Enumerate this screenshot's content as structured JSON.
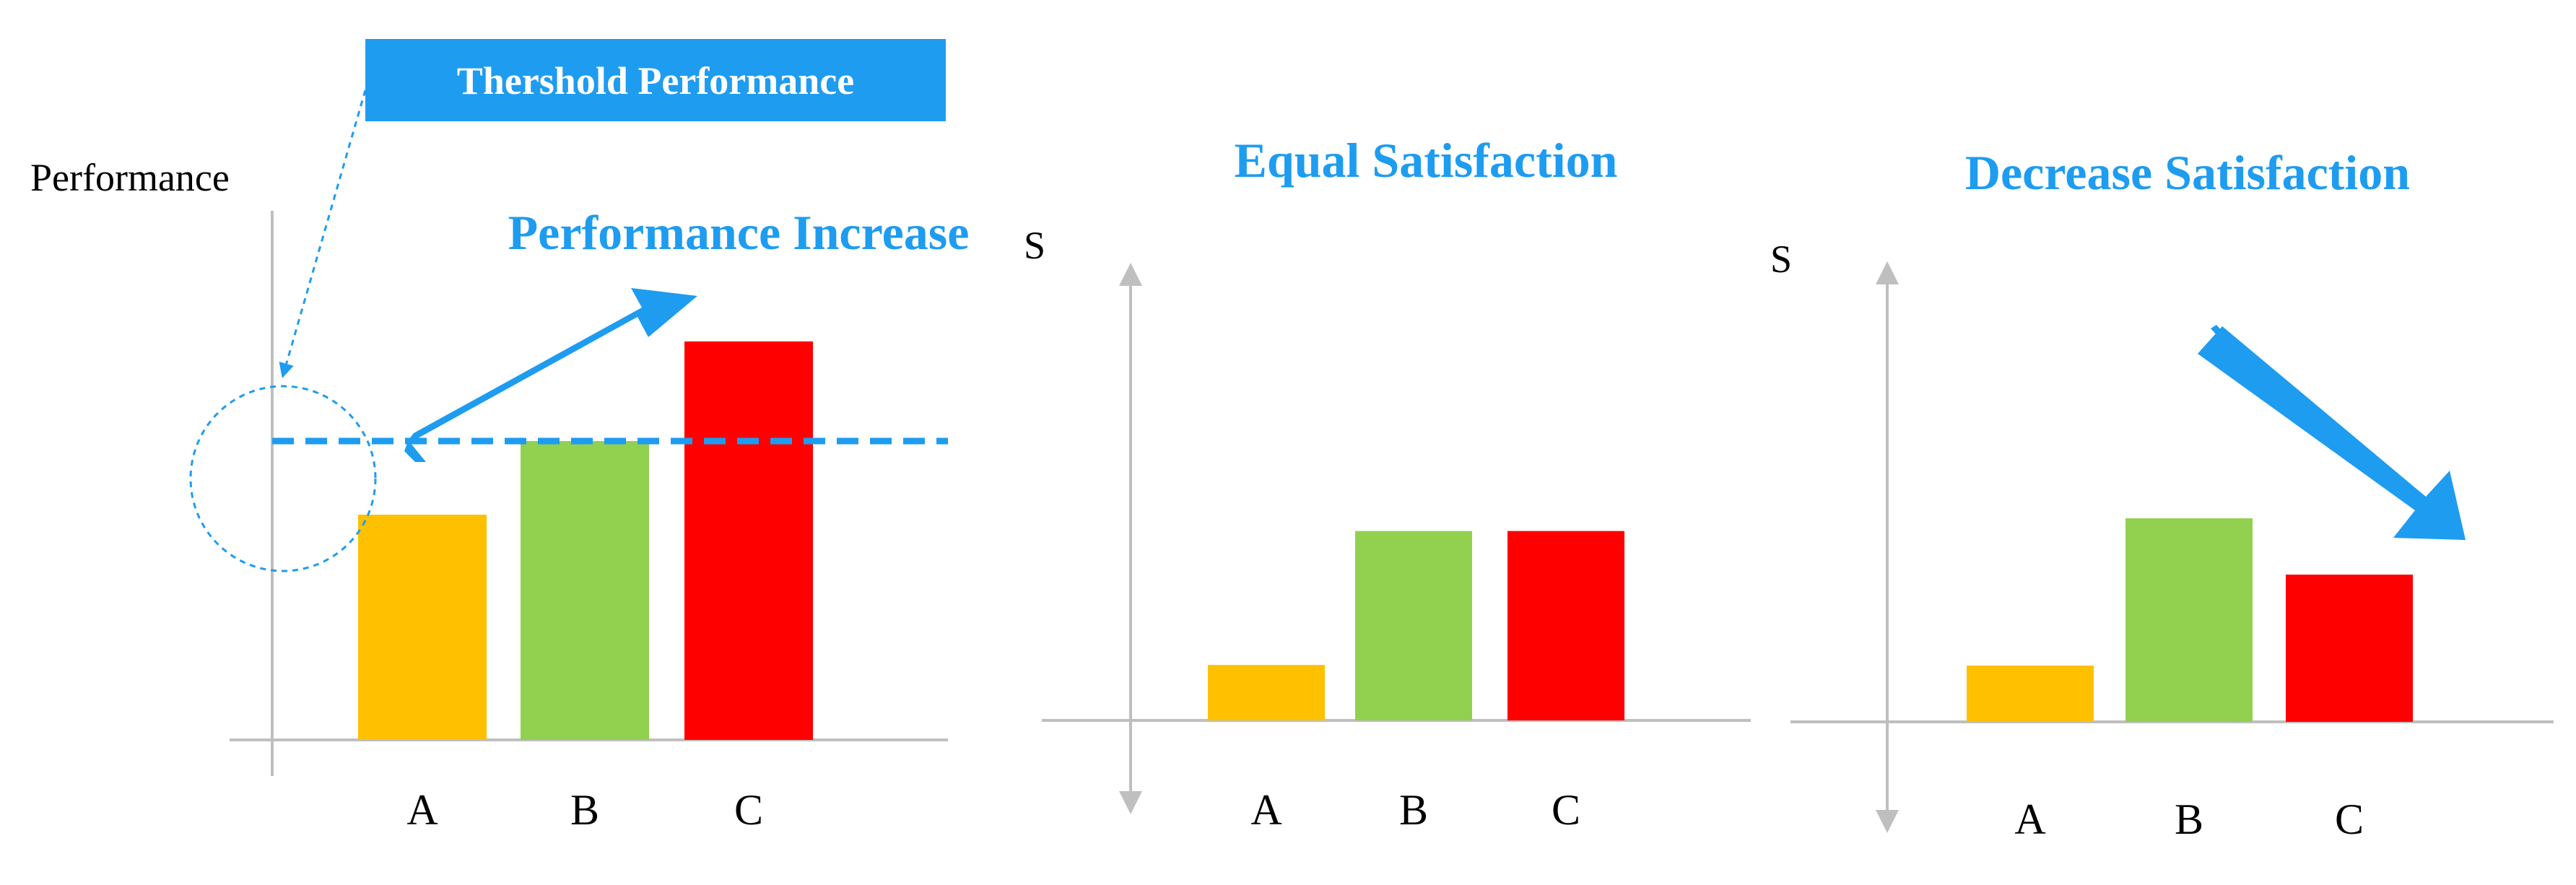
{
  "panels": [
    {
      "title": "Performance Increase",
      "ylabel": "Performance",
      "callout": "Thershold Performance",
      "categories": [
        "A",
        "B",
        "C"
      ],
      "values": [
        0.52,
        0.69,
        0.92
      ],
      "threshold": 0.69,
      "trend": "increase"
    },
    {
      "title": "Equal Satisfaction",
      "ylabel": "S",
      "categories": [
        "A",
        "B",
        "C"
      ],
      "values": [
        0.12,
        0.41,
        0.41
      ],
      "trend": "equal"
    },
    {
      "title": "Decrease Satisfaction",
      "ylabel": "S",
      "categories": [
        "A",
        "B",
        "C"
      ],
      "values": [
        0.13,
        0.47,
        0.34
      ],
      "trend": "decrease"
    }
  ],
  "colors": {
    "accent": "#1e9cf0",
    "bar_a": "#ffc000",
    "bar_b": "#92d050",
    "bar_c": "#ff0000",
    "axis": "#bfbfbf",
    "callout_bg": "#1e9cf0"
  },
  "icons": [
    "trend-up-arrow-icon",
    "trend-down-arrow-icon",
    "threshold-circle-icon",
    "double-headed-axis-arrow-icon"
  ]
}
